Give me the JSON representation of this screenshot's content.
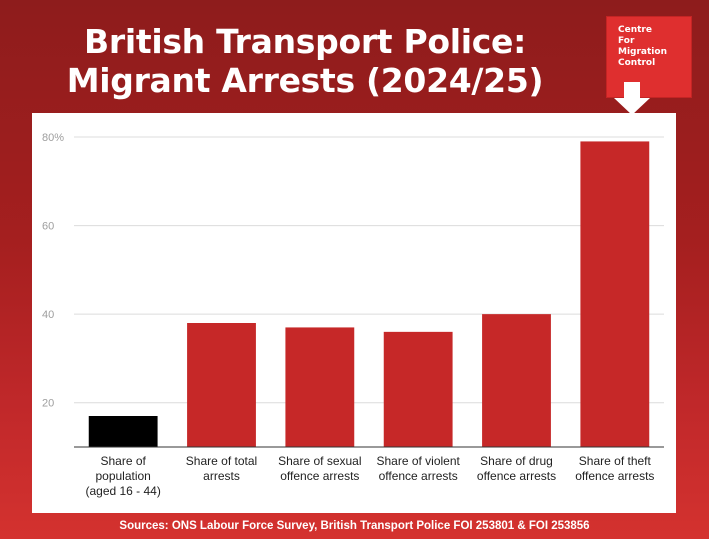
{
  "title": "British Transport Police: Migrant Arrests (2024/25)",
  "logo": {
    "lines": [
      "Centre",
      "For",
      "Migration",
      "Control"
    ],
    "color": "#df2f2f"
  },
  "sources": "Sources: ONS Labour Force Survey, British Transport Police FOI 253801 & FOI 253856",
  "chart_data": {
    "type": "bar",
    "title": "British Transport Police: Migrant Arrests (2024/25)",
    "xlabel": "",
    "ylabel": "",
    "ylim": [
      10,
      80
    ],
    "yticks": [
      20,
      40,
      60,
      80
    ],
    "ytick_labels": [
      "20",
      "40",
      "60",
      "80%"
    ],
    "grid": true,
    "categories": [
      [
        "Share of",
        "population",
        "(aged 16 - 44)"
      ],
      [
        "Share of total",
        "arrests"
      ],
      [
        "Share of sexual",
        "offence arrests"
      ],
      [
        "Share of violent",
        "offence arrests"
      ],
      [
        "Share of drug",
        "offence arrests"
      ],
      [
        "Share of theft",
        "offence arrests"
      ]
    ],
    "values": [
      17,
      38,
      37,
      36,
      40,
      79
    ],
    "colors": [
      "#000000",
      "#c62828",
      "#c62828",
      "#c62828",
      "#c62828",
      "#c62828"
    ]
  }
}
